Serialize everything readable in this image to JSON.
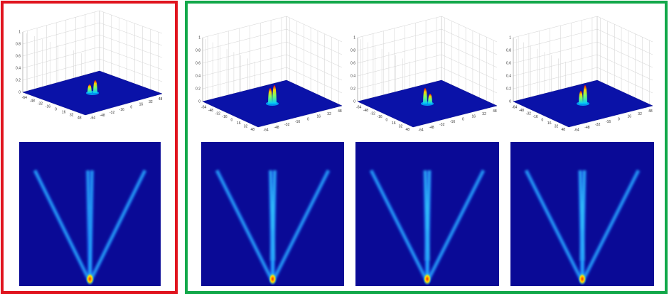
{
  "surface_axes": {
    "zticks": [
      0,
      0.2,
      0.4,
      0.6,
      0.8,
      1
    ],
    "xticks": [
      -64,
      -48,
      -32,
      -16,
      0,
      16,
      32,
      48
    ],
    "yticks": [
      -64,
      -48,
      -32,
      -16,
      0,
      16,
      32,
      48
    ]
  }
}
